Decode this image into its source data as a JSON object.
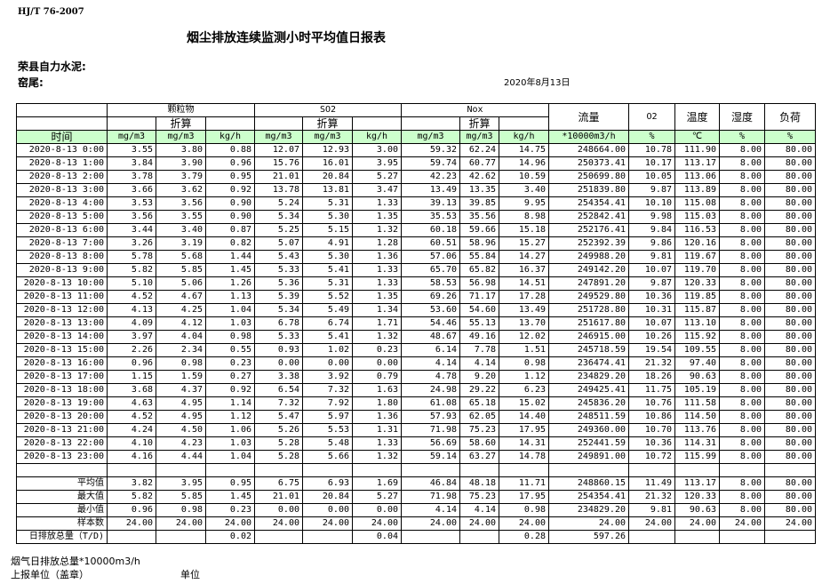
{
  "standard": "HJ/T  76-2007",
  "title": "烟尘排放连续监测小时平均值日报表",
  "company": "荣县自力水泥:",
  "kiln": "窑尾:",
  "date": "2020年8月13日",
  "header": {
    "particulate": "颗粒物",
    "so2": "SO2",
    "nox": "Nox",
    "converted": "折算",
    "flow": "流量",
    "o2": "O2",
    "temp": "温度",
    "humidity": "湿度",
    "load": "负荷",
    "time": "时间",
    "units": [
      "mg/m3",
      "mg/m3",
      "kg/h",
      "mg/m3",
      "mg/m3",
      "kg/h",
      "mg/m3",
      "mg/m3",
      "kg/h",
      "*10000m3/h",
      "%",
      "℃",
      "%",
      "%"
    ]
  },
  "rows": [
    [
      "2020-8-13 0:00",
      "3.55",
      "3.80",
      "0.88",
      "12.07",
      "12.93",
      "3.00",
      "59.32",
      "62.24",
      "14.75",
      "248664.00",
      "10.78",
      "111.90",
      "8.00",
      "80.00"
    ],
    [
      "2020-8-13 1:00",
      "3.84",
      "3.90",
      "0.96",
      "15.76",
      "16.01",
      "3.95",
      "59.74",
      "60.77",
      "14.96",
      "250373.41",
      "10.17",
      "113.17",
      "8.00",
      "80.00"
    ],
    [
      "2020-8-13 2:00",
      "3.78",
      "3.79",
      "0.95",
      "21.01",
      "20.84",
      "5.27",
      "42.23",
      "42.62",
      "10.59",
      "250699.80",
      "10.05",
      "113.06",
      "8.00",
      "80.00"
    ],
    [
      "2020-8-13 3:00",
      "3.66",
      "3.62",
      "0.92",
      "13.78",
      "13.81",
      "3.47",
      "13.49",
      "13.35",
      "3.40",
      "251839.80",
      "9.87",
      "113.89",
      "8.00",
      "80.00"
    ],
    [
      "2020-8-13 4:00",
      "3.53",
      "3.56",
      "0.90",
      "5.24",
      "5.31",
      "1.33",
      "39.13",
      "39.85",
      "9.95",
      "254354.41",
      "10.10",
      "115.08",
      "8.00",
      "80.00"
    ],
    [
      "2020-8-13 5:00",
      "3.56",
      "3.55",
      "0.90",
      "5.34",
      "5.30",
      "1.35",
      "35.53",
      "35.56",
      "8.98",
      "252842.41",
      "9.98",
      "115.03",
      "8.00",
      "80.00"
    ],
    [
      "2020-8-13 6:00",
      "3.44",
      "3.40",
      "0.87",
      "5.25",
      "5.15",
      "1.32",
      "60.18",
      "59.66",
      "15.18",
      "252176.41",
      "9.84",
      "116.53",
      "8.00",
      "80.00"
    ],
    [
      "2020-8-13 7:00",
      "3.26",
      "3.19",
      "0.82",
      "5.07",
      "4.91",
      "1.28",
      "60.51",
      "58.96",
      "15.27",
      "252392.39",
      "9.86",
      "120.16",
      "8.00",
      "80.00"
    ],
    [
      "2020-8-13 8:00",
      "5.78",
      "5.68",
      "1.44",
      "5.43",
      "5.30",
      "1.36",
      "57.06",
      "55.84",
      "14.27",
      "249988.20",
      "9.81",
      "119.67",
      "8.00",
      "80.00"
    ],
    [
      "2020-8-13 9:00",
      "5.82",
      "5.85",
      "1.45",
      "5.33",
      "5.41",
      "1.33",
      "65.70",
      "65.82",
      "16.37",
      "249142.20",
      "10.07",
      "119.70",
      "8.00",
      "80.00"
    ],
    [
      "2020-8-13 10:00",
      "5.10",
      "5.06",
      "1.26",
      "5.36",
      "5.31",
      "1.33",
      "58.53",
      "56.98",
      "14.51",
      "247891.20",
      "9.87",
      "120.33",
      "8.00",
      "80.00"
    ],
    [
      "2020-8-13 11:00",
      "4.52",
      "4.67",
      "1.13",
      "5.39",
      "5.52",
      "1.35",
      "69.26",
      "71.17",
      "17.28",
      "249529.80",
      "10.36",
      "119.85",
      "8.00",
      "80.00"
    ],
    [
      "2020-8-13 12:00",
      "4.13",
      "4.25",
      "1.04",
      "5.34",
      "5.49",
      "1.34",
      "53.60",
      "54.60",
      "13.49",
      "251728.80",
      "10.31",
      "115.87",
      "8.00",
      "80.00"
    ],
    [
      "2020-8-13 13:00",
      "4.09",
      "4.12",
      "1.03",
      "6.78",
      "6.74",
      "1.71",
      "54.46",
      "55.13",
      "13.70",
      "251617.80",
      "10.07",
      "113.10",
      "8.00",
      "80.00"
    ],
    [
      "2020-8-13 14:00",
      "3.97",
      "4.04",
      "0.98",
      "5.33",
      "5.41",
      "1.32",
      "48.67",
      "49.16",
      "12.02",
      "246915.00",
      "10.26",
      "115.92",
      "8.00",
      "80.00"
    ],
    [
      "2020-8-13 15:00",
      "2.26",
      "2.34",
      "0.55",
      "0.93",
      "1.02",
      "0.23",
      "6.14",
      "7.78",
      "1.51",
      "245718.59",
      "19.54",
      "109.55",
      "8.00",
      "80.00"
    ],
    [
      "2020-8-13 16:00",
      "0.96",
      "0.98",
      "0.23",
      "0.00",
      "0.00",
      "0.00",
      "4.14",
      "4.14",
      "0.98",
      "236474.41",
      "21.32",
      "97.40",
      "8.00",
      "80.00"
    ],
    [
      "2020-8-13 17:00",
      "1.15",
      "1.59",
      "0.27",
      "3.38",
      "3.92",
      "0.79",
      "4.78",
      "9.20",
      "1.12",
      "234829.20",
      "18.26",
      "90.63",
      "8.00",
      "80.00"
    ],
    [
      "2020-8-13 18:00",
      "3.68",
      "4.37",
      "0.92",
      "6.54",
      "7.32",
      "1.63",
      "24.98",
      "29.22",
      "6.23",
      "249425.41",
      "11.75",
      "105.19",
      "8.00",
      "80.00"
    ],
    [
      "2020-8-13 19:00",
      "4.63",
      "4.95",
      "1.14",
      "7.32",
      "7.92",
      "1.80",
      "61.08",
      "65.18",
      "15.02",
      "245836.20",
      "10.76",
      "111.58",
      "8.00",
      "80.00"
    ],
    [
      "2020-8-13 20:00",
      "4.52",
      "4.95",
      "1.12",
      "5.47",
      "5.97",
      "1.36",
      "57.93",
      "62.05",
      "14.40",
      "248511.59",
      "10.86",
      "114.50",
      "8.00",
      "80.00"
    ],
    [
      "2020-8-13 21:00",
      "4.24",
      "4.50",
      "1.06",
      "5.26",
      "5.53",
      "1.31",
      "71.98",
      "75.23",
      "17.95",
      "249360.00",
      "10.70",
      "113.76",
      "8.00",
      "80.00"
    ],
    [
      "2020-8-13 22:00",
      "4.10",
      "4.23",
      "1.03",
      "5.28",
      "5.48",
      "1.33",
      "56.69",
      "58.60",
      "14.31",
      "252441.59",
      "10.36",
      "114.31",
      "8.00",
      "80.00"
    ],
    [
      "2020-8-13 23:00",
      "4.16",
      "4.44",
      "1.04",
      "5.28",
      "5.66",
      "1.32",
      "59.14",
      "63.27",
      "14.78",
      "249891.00",
      "10.72",
      "115.99",
      "8.00",
      "80.00"
    ]
  ],
  "summary": [
    [
      "平均值",
      "3.82",
      "3.95",
      "0.95",
      "6.75",
      "6.93",
      "1.69",
      "46.84",
      "48.18",
      "11.71",
      "248860.15",
      "11.49",
      "113.17",
      "8.00",
      "80.00"
    ],
    [
      "最大值",
      "5.82",
      "5.85",
      "1.45",
      "21.01",
      "20.84",
      "5.27",
      "71.98",
      "75.23",
      "17.95",
      "254354.41",
      "21.32",
      "120.33",
      "8.00",
      "80.00"
    ],
    [
      "最小值",
      "0.96",
      "0.98",
      "0.23",
      "0.00",
      "0.00",
      "0.00",
      "4.14",
      "4.14",
      "0.98",
      "234829.20",
      "9.81",
      "90.63",
      "8.00",
      "80.00"
    ],
    [
      "样本数",
      "24.00",
      "24.00",
      "24.00",
      "24.00",
      "24.00",
      "24.00",
      "24.00",
      "24.00",
      "24.00",
      "24.00",
      "24.00",
      "24.00",
      "24.00",
      "24.00"
    ]
  ],
  "daily_total": [
    "日排放总量（T/D)",
    "",
    "",
    "0.02",
    "",
    "",
    "0.04",
    "",
    "",
    "0.28",
    "597.26",
    "",
    "",
    "",
    ""
  ],
  "footer": {
    "flue_total": "烟气日排放总量*10000m3/h",
    "reporting_unit": "上报单位（盖章）",
    "unit": "单位"
  }
}
